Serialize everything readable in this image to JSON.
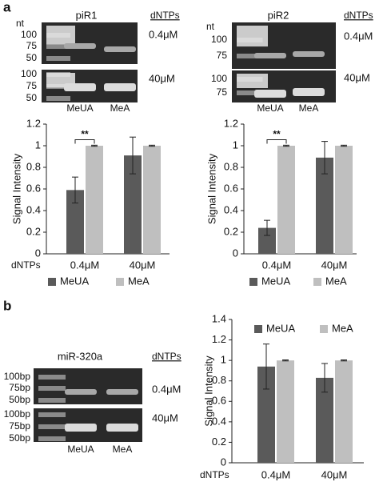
{
  "panel_labels": [
    "a",
    "b"
  ],
  "gels": [
    {
      "title": "piR1",
      "header": "dNTPs",
      "unit": "nt",
      "lanes": [
        "MeUA",
        "MeA"
      ],
      "rows": [
        {
          "ticks": [
            "100",
            "75",
            "50"
          ],
          "condition": "0.4μM"
        },
        {
          "ticks": [
            "100",
            "75",
            "50"
          ],
          "condition": "40μM"
        }
      ]
    },
    {
      "title": "piR2",
      "header": "dNTPs",
      "unit": "nt",
      "lanes": [
        "MeUA",
        "MeA"
      ],
      "rows": [
        {
          "ticks": [
            "100",
            "75"
          ],
          "condition": "0.4μM"
        },
        {
          "ticks": [
            "100",
            "75"
          ],
          "condition": "40μM"
        }
      ]
    },
    {
      "title": "miR-320a",
      "header": "dNTPs",
      "lanes": [
        "MeUA",
        "MeA"
      ],
      "rows": [
        {
          "ticks": [
            "100bp",
            "75bp",
            "50bp"
          ],
          "condition": "0.4μM"
        },
        {
          "ticks": [
            "100bp",
            "75bp",
            "50bp"
          ],
          "condition": "40μM"
        }
      ]
    }
  ],
  "chart_data": [
    {
      "type": "bar",
      "y_label": "Signal Intensity",
      "x_label": "dNTPs",
      "categories": [
        "0.4μM",
        "40μM"
      ],
      "ylim": [
        0,
        1.2
      ],
      "yticks": [
        0,
        0.2,
        0.4,
        0.6,
        0.8,
        1,
        1.2
      ],
      "legend": "bottom",
      "annotation": "**",
      "series": [
        {
          "name": "MeUA",
          "color": "#5a5a5a",
          "values": [
            0.59,
            0.91
          ],
          "errors": [
            0.12,
            0.17
          ]
        },
        {
          "name": "MeA",
          "color": "#bfbfbf",
          "values": [
            1,
            1
          ],
          "errors": [
            0.005,
            0.005
          ]
        }
      ]
    },
    {
      "type": "bar",
      "y_label": "Signal Intensity",
      "categories": [
        "0.4μM",
        "40μM"
      ],
      "ylim": [
        0,
        1.2
      ],
      "yticks": [
        0,
        0.2,
        0.4,
        0.6,
        0.8,
        1,
        1.2
      ],
      "legend": "bottom",
      "annotation": "**",
      "series": [
        {
          "name": "MeUA",
          "color": "#5a5a5a",
          "values": [
            0.24,
            0.89
          ],
          "errors": [
            0.07,
            0.15
          ]
        },
        {
          "name": "MeA",
          "color": "#bfbfbf",
          "values": [
            1,
            1
          ],
          "errors": [
            0.005,
            0.005
          ]
        }
      ]
    },
    {
      "type": "bar",
      "y_label": "Signal Intensity",
      "x_label": "dNTPs",
      "categories": [
        "0.4μM",
        "40μM"
      ],
      "ylim": [
        0,
        1.4
      ],
      "yticks": [
        0,
        0.2,
        0.4,
        0.6,
        0.8,
        1,
        1.2,
        1.4
      ],
      "legend": "top",
      "series": [
        {
          "name": "MeUA",
          "color": "#5a5a5a",
          "values": [
            0.94,
            0.83
          ],
          "errors": [
            0.22,
            0.14
          ]
        },
        {
          "name": "MeA",
          "color": "#bfbfbf",
          "values": [
            1,
            1
          ],
          "errors": [
            0.005,
            0.005
          ]
        }
      ]
    }
  ]
}
